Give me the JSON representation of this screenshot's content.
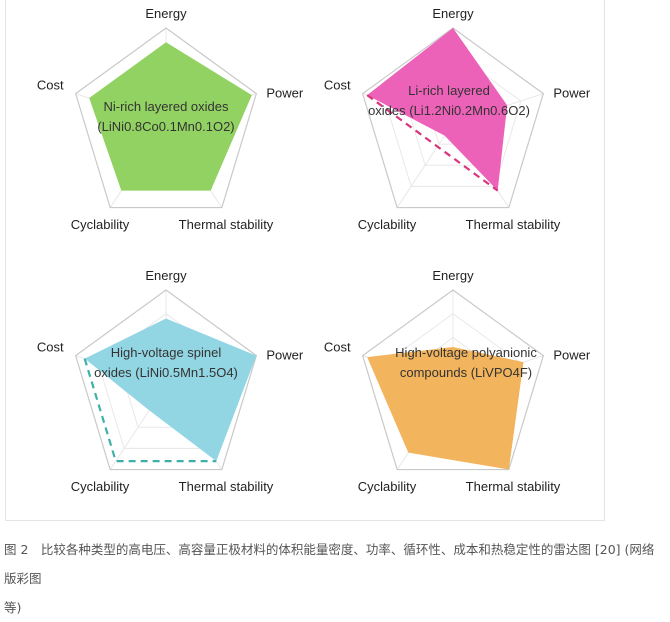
{
  "chart_data": [
    {
      "type": "radar",
      "axes": [
        "Energy",
        "Power",
        "Thermal stability",
        "Cyclability",
        "Cost"
      ],
      "range": [
        0,
        1
      ],
      "label_lines": [
        "Ni-rich layered oxides",
        "(LiNi0.8Co0.1Mn0.1O2)"
      ],
      "fill_color": "#92d262",
      "series": [
        {
          "values": [
            0.85,
            0.95,
            0.8,
            0.8,
            0.85
          ],
          "style": "filled"
        }
      ]
    },
    {
      "type": "radar",
      "axes": [
        "Energy",
        "Power",
        "Thermal stability",
        "Cyclability",
        "Cost"
      ],
      "range": [
        0,
        1
      ],
      "label_lines": [
        "Li-rich layered",
        "oxides (Li1.2Ni0.2Mn0.6O2)"
      ],
      "fill_color": "#ec62b8",
      "dash_color": "#d8357a",
      "series": [
        {
          "values": [
            1.0,
            0.6,
            0.8,
            0.15,
            0.95
          ],
          "style": "filled"
        },
        {
          "values": [
            null,
            null,
            0.8,
            null,
            0.95
          ],
          "style": "dashed"
        }
      ]
    },
    {
      "type": "radar",
      "axes": [
        "Energy",
        "Power",
        "Thermal stability",
        "Cyclability",
        "Cost"
      ],
      "range": [
        0,
        1
      ],
      "label_lines": [
        "High-voltage spinel",
        "oxides (LiNi0.5Mn1.5O4)"
      ],
      "fill_color": "#93d6e3",
      "dash_color": "#3fb0a8",
      "series": [
        {
          "values": [
            0.7,
            1.0,
            0.9,
            0.3,
            0.9
          ],
          "style": "filled"
        },
        {
          "values": [
            null,
            null,
            0.9,
            0.9,
            0.9
          ],
          "style": "dashed"
        }
      ]
    },
    {
      "type": "radar",
      "axes": [
        "Energy",
        "Power",
        "Thermal stability",
        "Cyclability",
        "Cost"
      ],
      "range": [
        0,
        1
      ],
      "label_lines": [
        "High-voltage polyanionic",
        "compounds (LiVPO4F)"
      ],
      "fill_color": "#f2b45c",
      "series": [
        {
          "values": [
            0.4,
            0.78,
            1.0,
            0.8,
            0.95
          ],
          "style": "filled"
        }
      ]
    }
  ],
  "caption": {
    "line1": "图 2　比较各种类型的高电压、高容量正极材料的体积能量密度、功率、循环性、成本和热稳定性的雷达图 [20] (网络版彩图",
    "line2": "等)"
  }
}
